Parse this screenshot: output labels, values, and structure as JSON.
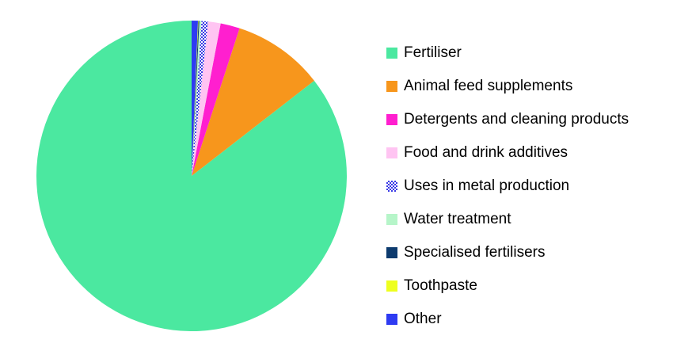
{
  "chart_data": {
    "type": "pie",
    "title": "",
    "start_angle_deg": 0,
    "direction": "clockwise",
    "legend_position": "right",
    "series": [
      {
        "name": "Fertiliser",
        "value": 85.5,
        "color": "#4BE8A0",
        "pattern": "solid"
      },
      {
        "name": "Animal feed supplements",
        "value": 9.5,
        "color": "#F7961C",
        "pattern": "solid"
      },
      {
        "name": "Detergents and cleaning products",
        "value": 2.0,
        "color": "#FF1FCF",
        "pattern": "solid"
      },
      {
        "name": "Food and drink additives",
        "value": 1.3,
        "color": "#FFC4F2",
        "pattern": "solid"
      },
      {
        "name": "Uses in metal production",
        "value": 0.7,
        "color": "#3A3AE6",
        "pattern": "checker"
      },
      {
        "name": "Water treatment",
        "value": 0.2,
        "color": "#B6F5C9",
        "pattern": "solid"
      },
      {
        "name": "Specialised fertilisers",
        "value": 0.1,
        "color": "#0D3B6E",
        "pattern": "solid"
      },
      {
        "name": "Toothpaste",
        "value": 0.05,
        "color": "#EEFF1E",
        "pattern": "solid"
      },
      {
        "name": "Other",
        "value": 0.65,
        "color": "#2E3BF2",
        "pattern": "solid"
      }
    ]
  }
}
